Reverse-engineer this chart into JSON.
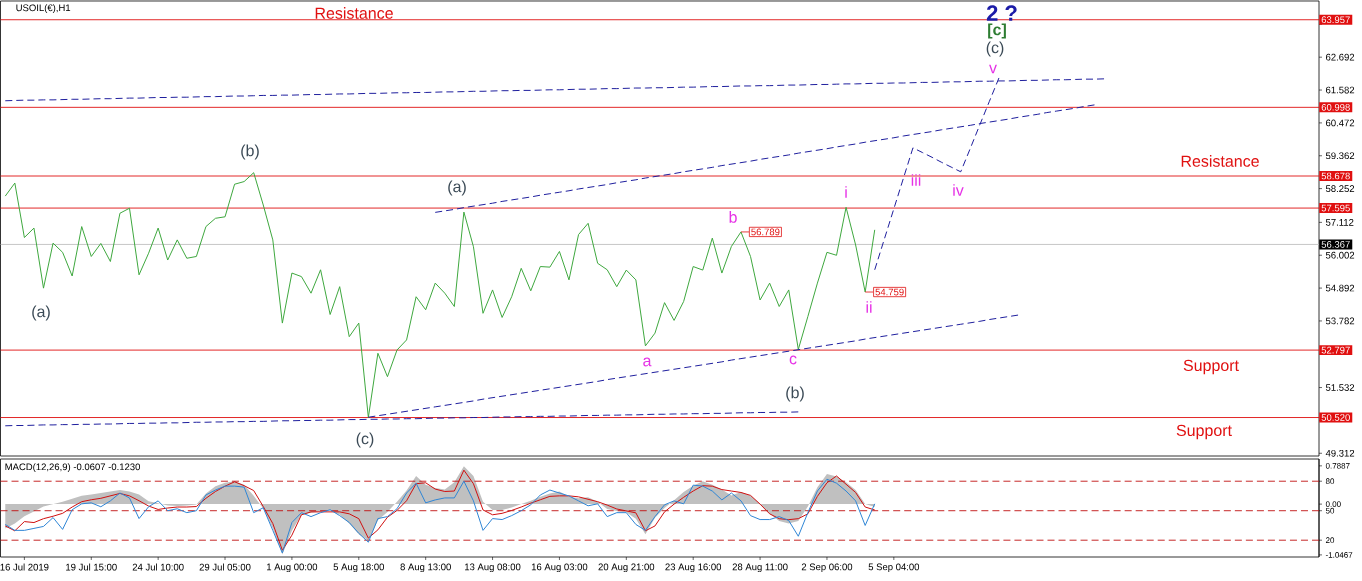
{
  "chart_data": [
    {
      "type": "line",
      "title": "USOIL(€),H1",
      "categories": [
        null,
        null,
        null,
        null,
        null,
        null,
        null,
        null,
        null,
        null,
        null,
        null,
        null,
        null,
        null,
        null,
        null,
        null,
        null,
        null,
        null,
        null,
        null,
        null,
        null,
        null,
        null,
        null,
        null,
        null,
        null,
        null,
        null,
        null,
        null,
        null,
        null,
        null,
        null,
        null,
        null,
        null,
        null,
        null,
        null,
        null,
        null,
        null,
        null,
        null,
        null,
        null,
        null,
        null,
        null,
        null,
        null,
        null,
        null,
        null,
        null,
        null,
        null,
        null,
        null,
        null,
        null,
        null,
        null,
        null,
        null,
        null,
        null,
        null,
        null,
        null,
        null,
        null,
        null,
        null,
        null,
        null,
        null,
        null,
        null,
        null,
        null,
        null,
        null,
        null,
        null,
        null,
        null,
        null,
        null,
        null,
        null,
        null,
        null,
        null,
        null,
        null,
        null,
        null,
        null,
        null,
        null,
        null,
        null,
        null,
        null,
        null,
        null,
        null,
        null,
        null,
        null,
        null,
        null,
        null,
        null,
        null,
        null,
        null,
        null,
        null,
        null,
        null,
        null,
        null,
        null,
        null,
        null,
        null,
        null,
        null,
        null,
        null
      ],
      "ylim": [
        49.22,
        64.59
      ],
      "yticks": [
        {
          "value": 63.802,
          "label": null
        },
        62.692,
        61.582,
        60.472,
        59.362,
        58.252,
        57.112,
        56.002,
        54.892,
        53.782,
        {
          "value": 52.66,
          "label": null
        },
        51.532,
        {
          "value": 50.422,
          "label": null
        },
        49.312
      ],
      "series": [
        {
          "color": "#3fa83f",
          "values": [
            58.0,
            58.44,
            56.6,
            56.92,
            54.89,
            56.41,
            56.1,
            55.3,
            56.97,
            55.96,
            56.4,
            55.79,
            57.42,
            57.59,
            55.34,
            56.07,
            56.92,
            55.84,
            56.52,
            55.9,
            55.96,
            56.97,
            57.25,
            57.3,
            58.4,
            58.49,
            58.79,
            57.7,
            56.52,
            53.71,
            55.4,
            55.28,
            54.72,
            55.51,
            54.0,
            54.94,
            53.25,
            53.71,
            50.52,
            52.69,
            51.9,
            52.8,
            53.14,
            54.6,
            54.16,
            55.06,
            54.72,
            54.27,
            57.46,
            56.29,
            54.04,
            54.83,
            53.9,
            54.6,
            55.56,
            54.8,
            55.62,
            55.6,
            56.13,
            55.17,
            56.7,
            57.08,
            55.73,
            55.51,
            54.94,
            55.5,
            55.17,
            52.94,
            53.37,
            54.4,
            53.8,
            54.44,
            55.62,
            55.5,
            56.58,
            55.4,
            56.3,
            56.789,
            55.96,
            54.49,
            55.06,
            54.27,
            54.83,
            52.82,
            53.93,
            55.06,
            56.1,
            56.0,
            57.62,
            56.35,
            54.759,
            56.86,
            null,
            null,
            null,
            null,
            null,
            null,
            null,
            null,
            null,
            null,
            null,
            null,
            null,
            null,
            null,
            null,
            null,
            null,
            null,
            null,
            null,
            null,
            null,
            null,
            null,
            null,
            null,
            null,
            null,
            null,
            null,
            null,
            null,
            null,
            null,
            null,
            null,
            null,
            null,
            null,
            null,
            null,
            null,
            null,
            null,
            null
          ],
          "value_labels": [
            null,
            null,
            null,
            null,
            null,
            null,
            null,
            null,
            null,
            null,
            null,
            null,
            null,
            null,
            null,
            null,
            null,
            null,
            null,
            null,
            null,
            null,
            null,
            null,
            null,
            null,
            null,
            null,
            null,
            null,
            null,
            null,
            null,
            null,
            null,
            null,
            null,
            null,
            null,
            null,
            null,
            null,
            null,
            null,
            null,
            null,
            null,
            null,
            null,
            null,
            null,
            null,
            null,
            null,
            null,
            null,
            null,
            null,
            null,
            null,
            null,
            null,
            null,
            null,
            null,
            null,
            null,
            null,
            null,
            null,
            null,
            null,
            null,
            null,
            null,
            null,
            null,
            "56.789",
            null,
            null,
            null,
            null,
            null,
            null,
            null,
            null,
            null,
            null,
            null,
            null,
            "54.759",
            null,
            null,
            null,
            null,
            null,
            null,
            null,
            null,
            null,
            null,
            null,
            null,
            null,
            null,
            null,
            null,
            null,
            null,
            null,
            null,
            null,
            null,
            null,
            null,
            null,
            null,
            null,
            null,
            null,
            null,
            null,
            null,
            null,
            null,
            null,
            null,
            null,
            null,
            null,
            null,
            null,
            null,
            null,
            null,
            null,
            null,
            null
          ]
        },
        {
          "type": "line",
          "color": "#1f1f9e",
          "line_style": "dashed",
          "values": [
            61.22,
            61.23,
            61.24,
            61.24,
            61.25,
            61.25,
            61.26,
            61.27,
            61.27,
            61.28,
            61.29,
            61.29,
            61.3,
            61.31,
            61.31,
            61.32,
            61.33,
            61.33,
            61.34,
            61.34,
            61.35,
            61.36,
            61.36,
            61.37,
            61.38,
            61.38,
            61.39,
            61.4,
            61.4,
            61.41,
            61.41,
            61.42,
            61.43,
            61.43,
            61.44,
            61.45,
            61.45,
            61.46,
            61.47,
            61.47,
            61.48,
            61.49,
            61.49,
            61.5,
            61.5,
            61.51,
            61.52,
            61.52,
            61.53,
            61.54,
            61.54,
            61.55,
            61.56,
            61.56,
            61.57,
            61.57,
            61.58,
            61.59,
            61.59,
            61.6,
            61.61,
            61.61,
            61.62,
            61.63,
            61.63,
            61.64,
            61.65,
            61.65,
            61.66,
            61.66,
            61.67,
            61.68,
            61.68,
            61.69,
            61.7,
            61.7,
            61.71,
            61.72,
            61.72,
            61.73,
            61.73,
            61.74,
            61.75,
            61.75,
            61.76,
            61.77,
            61.77,
            61.78,
            61.79,
            61.79,
            61.8,
            61.81,
            61.81,
            61.82,
            61.82,
            61.83,
            61.84,
            61.84,
            61.85,
            61.86,
            61.86,
            61.87,
            61.88,
            61.88,
            61.89,
            61.89,
            61.9,
            61.91,
            61.91,
            61.92,
            61.93,
            61.93,
            61.94,
            61.95,
            61.95,
            61.96,
            null,
            null,
            null,
            null,
            null,
            null,
            null,
            null,
            null,
            null,
            null,
            null,
            null,
            null,
            null,
            null,
            null,
            null,
            null,
            null,
            null,
            null
          ]
        },
        {
          "type": "line",
          "color": "#1f1f9e",
          "line_style": "dashed",
          "values": [
            null,
            null,
            null,
            null,
            null,
            null,
            null,
            null,
            null,
            null,
            null,
            null,
            null,
            null,
            null,
            null,
            null,
            null,
            null,
            null,
            null,
            null,
            null,
            null,
            null,
            null,
            null,
            null,
            null,
            null,
            null,
            null,
            null,
            null,
            null,
            null,
            null,
            null,
            null,
            null,
            null,
            null,
            null,
            null,
            null,
            57.45,
            57.5,
            57.55,
            57.61,
            57.66,
            57.71,
            57.76,
            57.82,
            57.87,
            57.92,
            57.97,
            58.03,
            58.08,
            58.13,
            58.18,
            58.24,
            58.29,
            58.34,
            58.39,
            58.45,
            58.5,
            58.55,
            58.61,
            58.66,
            58.71,
            58.76,
            58.82,
            58.87,
            58.92,
            58.97,
            59.03,
            59.08,
            59.13,
            59.18,
            59.24,
            59.29,
            59.34,
            59.39,
            59.45,
            59.5,
            59.55,
            59.6,
            59.66,
            59.71,
            59.76,
            59.82,
            59.87,
            59.92,
            59.97,
            60.03,
            60.08,
            60.13,
            60.18,
            60.24,
            60.29,
            60.34,
            60.39,
            60.45,
            60.5,
            60.55,
            60.6,
            60.66,
            60.71,
            60.76,
            60.82,
            60.87,
            60.92,
            60.97,
            61.03,
            61.08,
            null,
            null,
            null,
            null,
            null,
            null,
            null,
            null,
            null,
            null,
            null,
            null,
            null,
            null,
            null,
            null,
            null,
            null,
            null,
            null,
            null,
            null,
            null
          ]
        },
        {
          "type": "line",
          "color": "#1f1f9e",
          "line_style": "dashed",
          "values": [
            null,
            null,
            null,
            null,
            null,
            null,
            null,
            null,
            null,
            null,
            null,
            null,
            null,
            null,
            null,
            null,
            null,
            null,
            null,
            null,
            null,
            null,
            null,
            null,
            null,
            null,
            null,
            null,
            null,
            null,
            null,
            null,
            null,
            null,
            null,
            null,
            null,
            null,
            50.53,
            50.58,
            50.63,
            50.68,
            50.73,
            50.78,
            50.83,
            50.88,
            50.93,
            50.98,
            51.03,
            51.08,
            51.14,
            51.19,
            51.24,
            51.29,
            51.34,
            51.39,
            51.44,
            51.49,
            51.54,
            51.59,
            51.64,
            51.69,
            51.74,
            51.8,
            51.85,
            51.9,
            51.95,
            52.0,
            52.05,
            52.1,
            52.15,
            52.2,
            52.25,
            52.3,
            52.35,
            52.4,
            52.46,
            52.51,
            52.56,
            52.61,
            52.66,
            52.71,
            52.76,
            52.81,
            52.86,
            52.91,
            52.96,
            53.01,
            53.06,
            53.11,
            53.17,
            53.22,
            53.27,
            53.32,
            53.37,
            53.42,
            53.47,
            53.52,
            53.57,
            53.62,
            53.67,
            53.72,
            53.77,
            53.83,
            53.88,
            53.93,
            53.98,
            null,
            null,
            null,
            null,
            null,
            null,
            null,
            null,
            null,
            null,
            null,
            null,
            null,
            null,
            null,
            null,
            null,
            null,
            null,
            null,
            null,
            null,
            null,
            null,
            null,
            null,
            null,
            null,
            null,
            null,
            null
          ]
        },
        {
          "type": "line",
          "color": "#1f1f9e",
          "line_style": "dashed",
          "values": [
            50.24,
            50.25,
            50.25,
            50.26,
            50.27,
            50.27,
            50.28,
            50.28,
            50.29,
            50.29,
            50.3,
            50.3,
            50.31,
            50.32,
            50.32,
            50.33,
            50.33,
            50.34,
            50.34,
            50.35,
            50.36,
            50.36,
            50.37,
            50.37,
            50.38,
            50.38,
            50.39,
            50.39,
            50.4,
            50.41,
            50.41,
            50.42,
            50.42,
            50.43,
            50.43,
            50.44,
            50.45,
            50.45,
            50.46,
            50.46,
            50.47,
            50.47,
            50.48,
            50.48,
            50.49,
            50.5,
            50.5,
            50.51,
            50.51,
            50.52,
            50.52,
            50.53,
            50.54,
            50.54,
            50.55,
            50.55,
            50.56,
            50.56,
            50.57,
            50.57,
            50.58,
            50.59,
            50.59,
            50.6,
            50.6,
            50.61,
            50.61,
            50.62,
            50.63,
            50.63,
            50.64,
            50.64,
            50.65,
            50.65,
            50.66,
            50.66,
            50.67,
            50.68,
            50.68,
            50.69,
            50.69,
            50.7,
            50.7,
            50.71,
            null,
            null,
            null,
            null,
            null,
            null,
            null,
            null,
            null,
            null,
            null,
            null,
            null,
            null,
            null,
            null,
            null,
            null,
            null,
            null,
            null,
            null,
            null,
            null,
            null,
            null,
            null,
            null,
            null,
            null,
            null,
            null,
            null,
            null,
            null,
            null,
            null,
            null,
            null,
            null,
            null,
            null,
            null,
            null,
            null,
            null,
            null,
            null,
            null,
            null,
            null,
            null,
            null,
            null
          ]
        },
        {
          "type": "line",
          "color": "#1f1f9e",
          "line_style": "dashed",
          "values": [
            null,
            null,
            null,
            null,
            null,
            null,
            null,
            null,
            null,
            null,
            null,
            null,
            null,
            null,
            null,
            null,
            null,
            null,
            null,
            null,
            null,
            null,
            null,
            null,
            null,
            null,
            null,
            null,
            null,
            null,
            null,
            null,
            null,
            null,
            null,
            null,
            null,
            null,
            null,
            null,
            null,
            null,
            null,
            null,
            null,
            null,
            null,
            null,
            null,
            null,
            null,
            null,
            null,
            null,
            null,
            null,
            null,
            null,
            null,
            null,
            null,
            null,
            null,
            null,
            null,
            null,
            null,
            null,
            null,
            null,
            null,
            null,
            null,
            null,
            null,
            null,
            null,
            null,
            null,
            null,
            null,
            null,
            null,
            null,
            null,
            null,
            null,
            null,
            null,
            null,
            null,
            55.51,
            56.54,
            57.57,
            58.6,
            59.63,
            59.47,
            59.31,
            59.14,
            58.98,
            58.82,
            59.61,
            60.41,
            61.2,
            61.99,
            null,
            null,
            null,
            null,
            null,
            null,
            null,
            null,
            null,
            null,
            null,
            null,
            null,
            null,
            null,
            null,
            null,
            null,
            null,
            null,
            null,
            null,
            null,
            null,
            null,
            null,
            null,
            null,
            null,
            null,
            null,
            null,
            null
          ]
        }
      ],
      "ref_lines": [
        {
          "axis": "y",
          "value": 63.957,
          "label": "63.957",
          "color": "#e01010"
        },
        {
          "axis": "y",
          "value": 60.998,
          "label": "60.998",
          "color": "#e01010"
        },
        {
          "axis": "y",
          "value": 58.678,
          "label": "58.678",
          "color": "#e01010"
        },
        {
          "axis": "y",
          "value": 57.595,
          "label": "57.595",
          "color": "#e01010"
        },
        {
          "axis": "y",
          "value": 56.367,
          "label": "56.367",
          "color": "#c0c0c0"
        },
        {
          "axis": "y",
          "value": 52.797,
          "label": "52.797",
          "color": "#e01010"
        },
        {
          "axis": "y",
          "value": 50.52,
          "label": "50.520",
          "color": "#e01010"
        }
      ],
      "annotations": [
        "Resistance",
        "Resistance",
        "Support",
        "Support",
        "(b)",
        "(a)",
        "(c)",
        "(a)",
        "(b)",
        "a",
        "b",
        "c",
        "i",
        "ii",
        "iii",
        "iv",
        "v",
        "(c)",
        "[c]",
        "2 ?"
      ]
    },
    {
      "type": "line",
      "title": "MACD(12,26,9) -0.0607 -0.1230",
      "categories": [
        null,
        null,
        "16 Jul 2019",
        null,
        null,
        null,
        null,
        null,
        null,
        "19 Jul 15:00",
        null,
        null,
        null,
        null,
        null,
        null,
        "24 Jul 10:00",
        null,
        null,
        null,
        null,
        null,
        null,
        "29 Jul 05:00",
        null,
        null,
        null,
        null,
        null,
        null,
        "1 Aug 00:00",
        null,
        null,
        null,
        null,
        null,
        null,
        "5 Aug 18:00",
        null,
        null,
        null,
        null,
        null,
        null,
        "8 Aug 13:00",
        null,
        null,
        null,
        null,
        null,
        null,
        "13 Aug 08:00",
        null,
        null,
        null,
        null,
        null,
        null,
        "16 Aug 03:00",
        null,
        null,
        null,
        null,
        null,
        null,
        "20 Aug 21:00",
        null,
        null,
        null,
        null,
        null,
        null,
        "23 Aug 16:00",
        null,
        null,
        null,
        null,
        null,
        null,
        "28 Aug 11:00",
        null,
        null,
        null,
        null,
        null,
        null,
        "2 Sep 06:00",
        null,
        null,
        null,
        null,
        null,
        null,
        "5 Sep 04:00",
        null,
        null,
        null,
        null,
        null,
        null,
        null,
        null,
        null,
        null,
        null,
        null,
        null,
        null,
        null,
        null,
        null,
        null,
        null,
        null,
        null,
        null,
        null,
        null,
        null,
        null,
        null,
        null,
        null,
        null,
        null,
        null,
        null,
        null,
        null,
        null,
        null,
        null,
        null,
        null,
        null,
        null,
        null,
        null
      ],
      "ylim": [
        -1.09,
        0.93
      ],
      "yticks": [
        0.7887,
        {
          "value": 0,
          "label": "0.00"
        },
        -1.0467
      ],
      "y2lim": [
        2.9,
        102.6
      ],
      "y2ticks": [
        80,
        50,
        20
      ],
      "series": [
        {
          "type": "area",
          "color": "#c0c0c0",
          "values": [
            -0.5,
            -0.4,
            -0.25,
            -0.15,
            -0.05,
            0,
            0.05,
            0.11,
            0.17,
            0.2,
            0.23,
            0.26,
            0.29,
            0.26,
            0.2,
            0.06,
            0.02,
            -0.03,
            -0.04,
            -0.03,
            -0.01,
            0.22,
            0.37,
            0.44,
            0.47,
            0.4,
            0.17,
            -0.09,
            -0.5,
            -1.04,
            -0.55,
            -0.22,
            -0.18,
            -0.15,
            -0.13,
            -0.22,
            -0.4,
            -0.62,
            -0.75,
            -0.33,
            -0.16,
            0.05,
            0.28,
            0.58,
            0.4,
            0.33,
            0.3,
            0.45,
            0.78,
            0.58,
            0.05,
            -0.12,
            -0.12,
            -0.07,
            0,
            0.07,
            0.15,
            0.22,
            0.26,
            0.15,
            0.12,
            0.14,
            0.05,
            -0.1,
            -0.14,
            -0.17,
            -0.3,
            -0.62,
            -0.28,
            -0.08,
            0.08,
            0.25,
            0.38,
            0.47,
            0.4,
            0.3,
            0.18,
            0.25,
            0.17,
            0.01,
            -0.2,
            -0.35,
            -0.4,
            -0.35,
            -0.05,
            0.35,
            0.62,
            0.57,
            0.45,
            0.29,
            0,
            -0.06,
            null,
            null,
            null,
            null,
            null,
            null,
            null,
            null,
            null,
            null,
            null,
            null,
            null,
            null,
            null,
            null,
            null,
            null,
            null,
            null,
            null,
            null,
            null,
            null,
            null,
            null,
            null,
            null,
            null,
            null,
            null,
            null,
            null,
            null,
            null,
            null,
            null,
            null,
            null,
            null,
            null,
            null,
            null,
            null,
            null,
            null
          ]
        },
        {
          "type": "line",
          "color": "#d01010",
          "values": [
            -0.45,
            -0.55,
            -0.36,
            -0.38,
            -0.3,
            -0.25,
            -0.19,
            -0.06,
            0.05,
            0.09,
            0.12,
            0.17,
            0.22,
            0.17,
            0.07,
            -0.04,
            -0.11,
            -0.08,
            -0.06,
            -0.06,
            -0.05,
            0.12,
            0.26,
            0.37,
            0.46,
            0.38,
            0.28,
            -0.05,
            -0.4,
            -0.95,
            -0.64,
            -0.22,
            -0.16,
            -0.16,
            -0.16,
            -0.16,
            -0.2,
            -0.3,
            -0.7,
            -0.53,
            -0.27,
            -0.13,
            0.07,
            0.42,
            0.44,
            0.31,
            0.26,
            0.27,
            0.7,
            0.42,
            -0.12,
            -0.22,
            -0.19,
            -0.13,
            -0.06,
            0.02,
            0.09,
            0.16,
            0.17,
            0.17,
            0.15,
            0.1,
            0.05,
            -0.02,
            -0.1,
            -0.14,
            -0.18,
            -0.55,
            -0.45,
            -0.16,
            0,
            0.14,
            0.27,
            0.38,
            0.37,
            0.3,
            0.27,
            0.24,
            0.18,
            0,
            -0.2,
            -0.3,
            -0.32,
            -0.3,
            -0.2,
            0.16,
            0.44,
            0.58,
            0.41,
            0.24,
            -0.06,
            -0.12,
            null,
            null,
            null,
            null,
            null,
            null,
            null,
            null,
            null,
            null,
            null,
            null,
            null,
            null,
            null,
            null,
            null,
            null,
            null,
            null,
            null,
            null,
            null,
            null,
            null,
            null,
            null,
            null,
            null,
            null,
            null,
            null,
            null,
            null,
            null,
            null,
            null,
            null,
            null,
            null,
            null,
            null,
            null,
            null,
            null,
            null
          ]
        },
        {
          "type": "line",
          "color": "#2f86d6",
          "axis": "y2",
          "values": [
            36,
            30,
            30,
            32,
            34,
            43,
            31,
            51,
            57,
            58,
            54,
            60,
            68,
            63,
            42,
            54,
            60,
            50,
            52,
            48,
            50,
            66,
            71,
            75,
            75,
            74,
            48,
            53,
            30,
            7,
            38,
            48,
            44,
            48,
            51,
            45,
            38,
            27,
            18,
            42,
            44,
            52,
            68,
            78,
            58,
            61,
            63,
            63,
            80,
            60,
            30,
            42,
            41,
            45,
            50,
            56,
            66,
            71,
            68,
            65,
            60,
            55,
            57,
            44,
            48,
            48,
            36,
            30,
            44,
            56,
            60,
            57,
            76,
            75,
            70,
            61,
            68,
            60,
            45,
            41,
            41,
            44,
            40,
            24,
            48,
            70,
            82,
            78,
            70,
            60,
            35,
            57,
            null,
            null,
            null,
            null,
            null,
            null,
            null,
            null,
            null,
            null,
            null,
            null,
            null,
            null,
            null,
            null,
            null,
            null,
            null,
            null,
            null,
            null,
            null,
            null,
            null,
            null,
            null,
            null,
            null,
            null,
            null,
            null,
            null,
            null,
            null,
            null,
            null,
            null,
            null,
            null,
            null,
            null,
            null,
            null,
            null,
            null
          ]
        }
      ],
      "ref_lines": [
        {
          "axis": "y2",
          "value": 80,
          "color": "#c01010",
          "line_style": "dashed"
        },
        {
          "axis": "y2",
          "value": 50,
          "color": "#c01010",
          "line_style": "dashed"
        },
        {
          "axis": "y2",
          "value": 20,
          "color": "#c01010",
          "line_style": "dashed"
        }
      ]
    }
  ]
}
